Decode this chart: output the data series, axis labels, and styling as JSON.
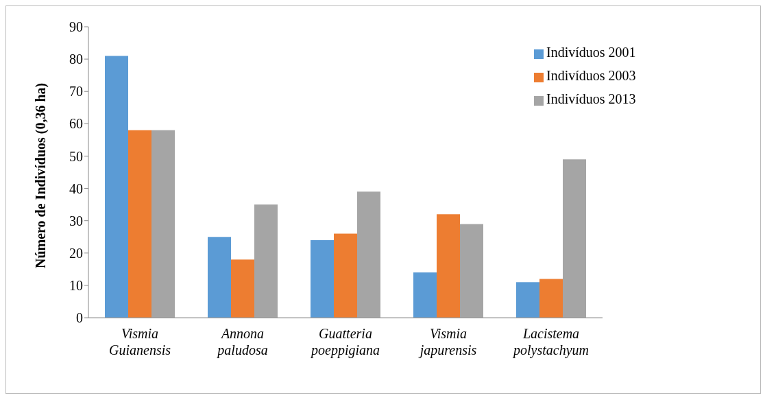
{
  "chart_data": {
    "type": "bar",
    "ylabel": "Número de Indivíduos (0,36 ha)",
    "categories": [
      "Vismia Guianensis",
      "Annona paludosa",
      "Guatteria poeppigiana",
      "Vismia japurensis",
      "Lacistema polystachyum"
    ],
    "series": [
      {
        "name": "Indivíduos 2001",
        "color": "#5b9bd5",
        "values": [
          81,
          25,
          24,
          14,
          11
        ]
      },
      {
        "name": "Indivíduos 2003",
        "color": "#ed7d31",
        "values": [
          58,
          18,
          26,
          32,
          12
        ]
      },
      {
        "name": "Indivíduos 2013",
        "color": "#a5a5a5",
        "values": [
          58,
          35,
          39,
          29,
          49
        ]
      }
    ],
    "ylim": [
      0,
      90
    ],
    "yticks": [
      0,
      10,
      20,
      30,
      40,
      50,
      60,
      70,
      80,
      90
    ],
    "grid": false,
    "legend": "top right"
  }
}
